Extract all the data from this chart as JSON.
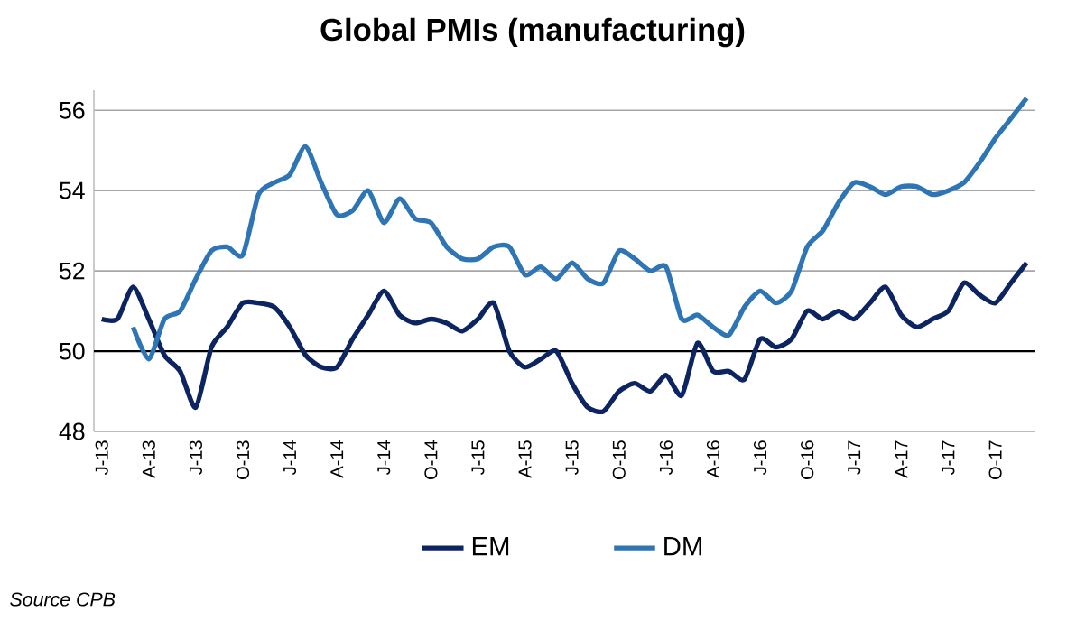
{
  "chart_data": {
    "type": "line",
    "title": "Global PMIs (manufacturing)",
    "categories": [
      "J-13",
      null,
      null,
      "A-13",
      null,
      null,
      "J-13",
      null,
      null,
      "O-13",
      null,
      null,
      "J-14",
      null,
      null,
      "A-14",
      null,
      null,
      "J-14",
      null,
      null,
      "O-14",
      null,
      null,
      "J-15",
      null,
      null,
      "A-15",
      null,
      null,
      "J-15",
      null,
      null,
      "O-15",
      null,
      null,
      "J-16",
      null,
      null,
      "A-16",
      null,
      null,
      "J-16",
      null,
      null,
      "O-16",
      null,
      null,
      "J-17",
      null,
      null,
      "A-17",
      null,
      null,
      "J-17",
      null,
      null,
      "O-17",
      null,
      null
    ],
    "series": [
      {
        "name": "EM",
        "color": "#0c2461",
        "values": [
          50.8,
          50.8,
          51.6,
          50.8,
          49.9,
          49.5,
          48.6,
          50.1,
          50.6,
          51.2,
          51.2,
          51.1,
          50.6,
          49.9,
          49.6,
          49.6,
          50.3,
          50.9,
          51.5,
          50.9,
          50.7,
          50.8,
          50.7,
          50.5,
          50.8,
          51.2,
          50.0,
          49.6,
          49.8,
          50.0,
          49.2,
          48.6,
          48.5,
          49.0,
          49.2,
          49.0,
          49.4,
          48.9,
          50.2,
          49.5,
          49.5,
          49.3,
          50.3,
          50.1,
          50.3,
          51.0,
          50.8,
          51.0,
          50.8,
          51.2,
          51.6,
          50.9,
          50.6,
          50.8,
          51.0,
          51.7,
          51.4,
          51.2,
          51.7,
          52.2
        ]
      },
      {
        "name": "DM",
        "color": "#2e75b6",
        "values": [
          null,
          null,
          50.6,
          49.8,
          50.8,
          51.0,
          51.8,
          52.5,
          52.6,
          52.4,
          53.9,
          54.2,
          54.4,
          55.1,
          54.2,
          53.4,
          53.5,
          54.0,
          53.2,
          53.8,
          53.3,
          53.2,
          52.6,
          52.3,
          52.3,
          52.6,
          52.6,
          51.9,
          52.1,
          51.8,
          52.2,
          51.8,
          51.7,
          52.5,
          52.3,
          52.0,
          52.1,
          50.8,
          50.9,
          50.6,
          50.4,
          51.1,
          51.5,
          51.2,
          51.5,
          52.6,
          53.0,
          53.7,
          54.2,
          54.1,
          53.9,
          54.1,
          54.1,
          53.9,
          54.0,
          54.2,
          54.7,
          55.3,
          55.8,
          56.3
        ]
      }
    ],
    "ylim": [
      48,
      56.5
    ],
    "yticks": [
      48,
      50,
      52,
      54,
      56
    ],
    "grid": "y",
    "legend": "bottom",
    "ref_lines": [
      {
        "axis": "y",
        "value": 50,
        "color": "#000000"
      }
    ],
    "annotations": [
      "Source CPB"
    ]
  }
}
